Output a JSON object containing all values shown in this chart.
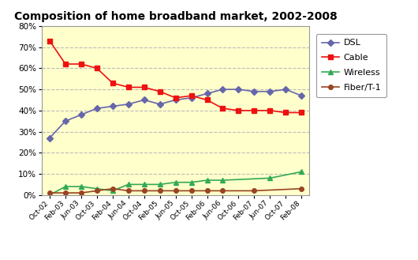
{
  "title": "Composition of home broadband market, 2002-2008",
  "x_labels": [
    "Oct-02",
    "Feb-03",
    "Jun-03",
    "Oct-03",
    "Feb-04",
    "Jun-04",
    "Oct-04",
    "Feb-05",
    "Jun-05",
    "Oct-05",
    "Feb-06",
    "Jun-06",
    "Oct-06",
    "Feb-07",
    "Jun-07",
    "Oct-07",
    "Feb-08"
  ],
  "DSL": [
    0.27,
    0.35,
    0.38,
    0.41,
    0.42,
    0.43,
    0.45,
    0.43,
    0.45,
    0.46,
    0.48,
    0.5,
    0.5,
    0.49,
    0.49,
    0.5,
    0.47
  ],
  "Cable": [
    0.73,
    0.62,
    0.62,
    0.6,
    0.53,
    0.51,
    0.51,
    0.49,
    0.46,
    0.47,
    0.45,
    0.41,
    0.4,
    0.4,
    0.4,
    0.39,
    0.39
  ],
  "Wireless": [
    0.0,
    0.04,
    0.04,
    0.03,
    0.02,
    0.05,
    0.05,
    0.05,
    0.06,
    0.06,
    0.07,
    0.07,
    null,
    null,
    0.08,
    null,
    0.11
  ],
  "Fiber": [
    0.01,
    0.01,
    0.01,
    0.02,
    0.03,
    0.02,
    0.02,
    0.02,
    0.02,
    0.02,
    0.02,
    0.02,
    null,
    0.02,
    null,
    null,
    0.03
  ],
  "DSL_color": "#6666AA",
  "Cable_color": "#EE1111",
  "Wireless_color": "#33AA55",
  "Fiber_color": "#994422",
  "background_color": "#FFFFCC",
  "grid_color": "#BBBBBB",
  "ylim": [
    0.0,
    0.8
  ],
  "yticks": [
    0.0,
    0.1,
    0.2,
    0.3,
    0.4,
    0.5,
    0.6,
    0.7,
    0.8
  ]
}
